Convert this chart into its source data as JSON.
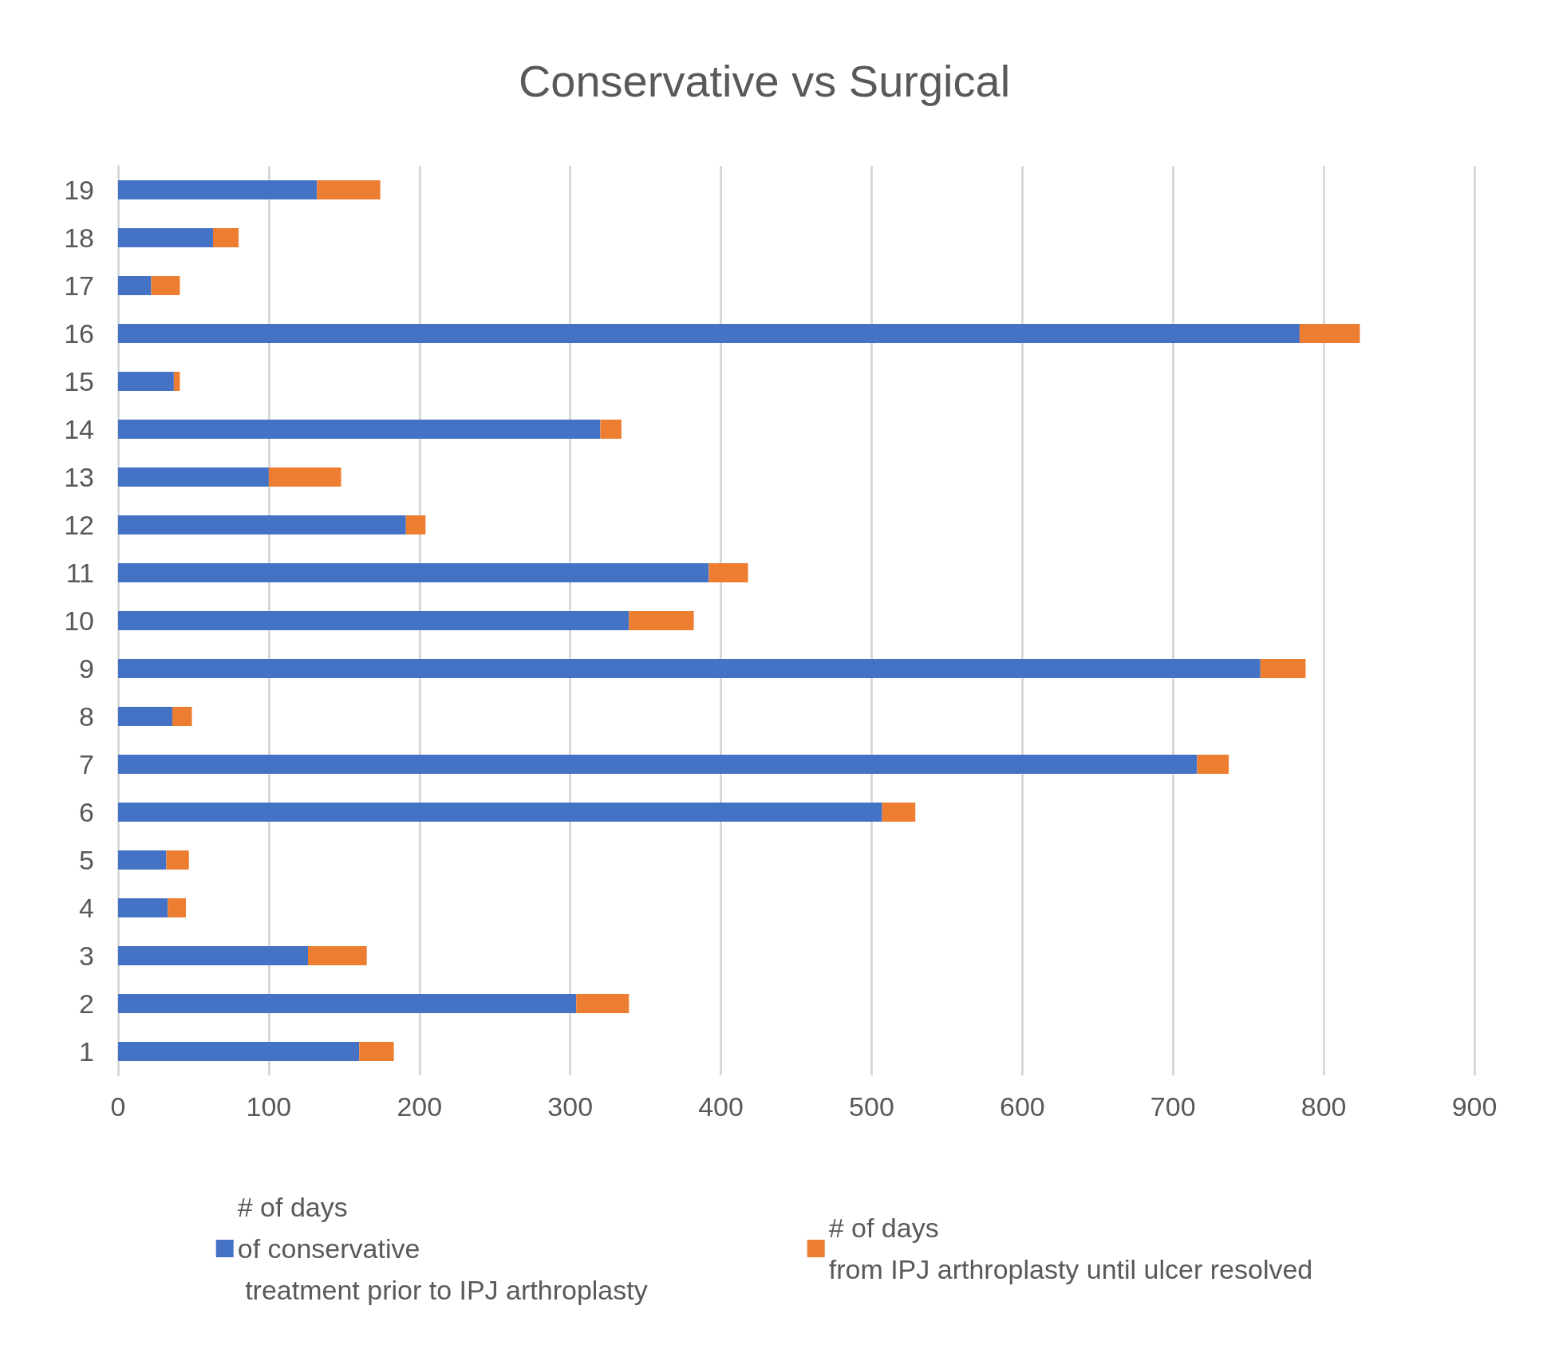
{
  "chart_data": {
    "type": "bar",
    "title": "Conservative vs Surgical",
    "orientation": "horizontal",
    "stacked": true,
    "categories": [
      "19",
      "18",
      "17",
      "16",
      "15",
      "14",
      "13",
      "12",
      "11",
      "10",
      "9",
      "8",
      "7",
      "6",
      "5",
      "4",
      "3",
      "2",
      "1"
    ],
    "series": [
      {
        "name": "# of days\nof conservative\n treatment prior to IPJ arthroplasty",
        "color": "#4472c4",
        "values": [
          132,
          63,
          22,
          784,
          37,
          320,
          100,
          191,
          392,
          339,
          758,
          36,
          716,
          507,
          32,
          33,
          126,
          304,
          160
        ]
      },
      {
        "name": "# of days\nfrom IPJ arthroplasty until ulcer resolved",
        "color": "#ed7d31",
        "values": [
          42,
          17,
          19,
          40,
          4,
          14,
          48,
          13,
          26,
          43,
          30,
          13,
          21,
          22,
          15,
          12,
          39,
          35,
          23
        ]
      }
    ],
    "xlim": [
      0,
      900
    ],
    "xticks": [
      0,
      100,
      200,
      300,
      400,
      500,
      600,
      700,
      800,
      900
    ],
    "grid": "x",
    "legend": "bottom"
  }
}
